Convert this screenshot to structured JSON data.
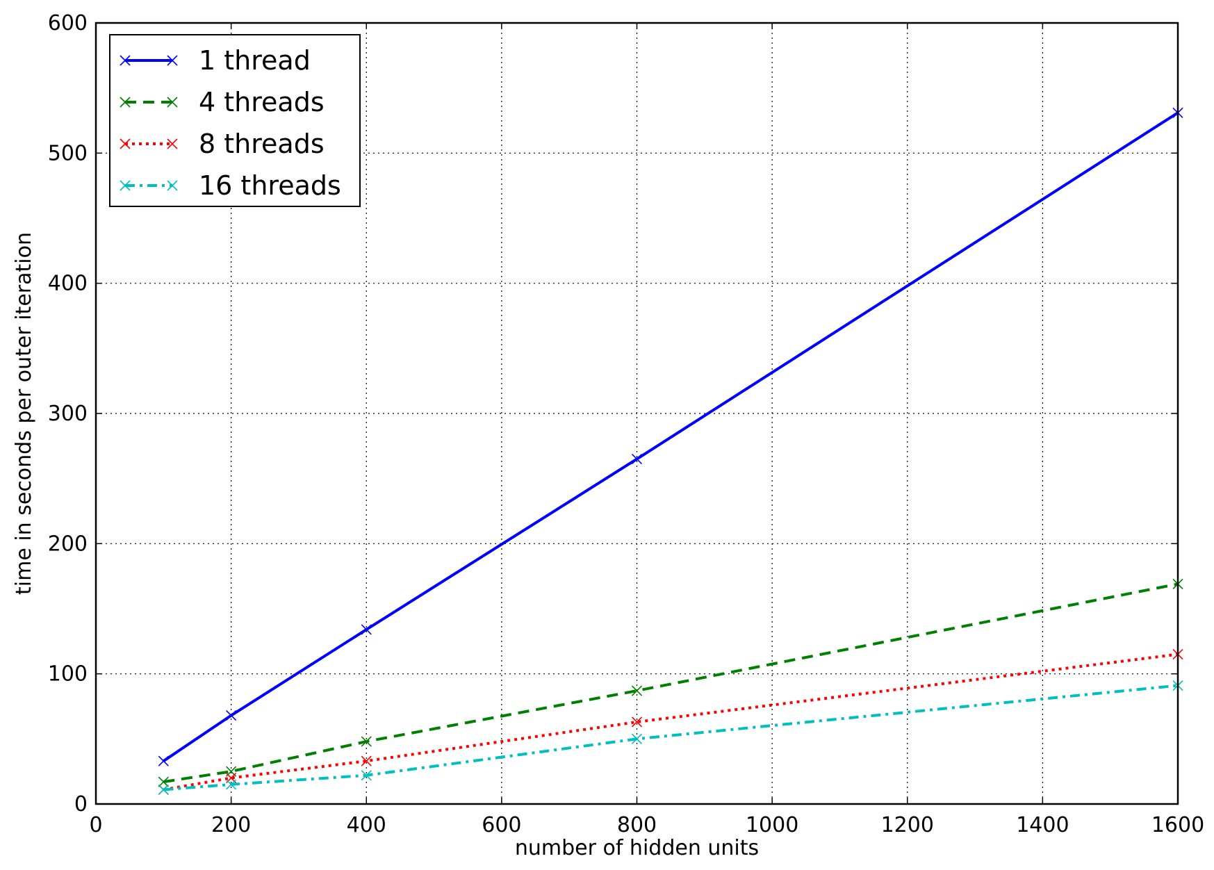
{
  "chart_data": {
    "type": "line",
    "title": "",
    "xlabel": "number of hidden units",
    "ylabel": "time in seconds per outer iteration",
    "xlim": [
      0,
      1600
    ],
    "ylim": [
      0,
      600
    ],
    "xticks": [
      0,
      200,
      400,
      600,
      800,
      1000,
      1200,
      1400,
      1600
    ],
    "yticks": [
      0,
      100,
      200,
      300,
      400,
      500,
      600
    ],
    "grid": true,
    "legend_position": "top-left",
    "x": [
      100,
      200,
      400,
      800,
      1600
    ],
    "series": [
      {
        "name": "1 thread",
        "values": [
          33,
          68,
          134,
          265,
          531
        ],
        "color": "#0000ff",
        "dash": "solid",
        "width": 4
      },
      {
        "name": "4 threads",
        "values": [
          17,
          25,
          48,
          87,
          169
        ],
        "color": "#008000",
        "dash": "dashed",
        "width": 4
      },
      {
        "name": "8 threads",
        "values": [
          11,
          20,
          33,
          63,
          115
        ],
        "color": "#ff0000",
        "dash": "dotted",
        "width": 4
      },
      {
        "name": "16 threads",
        "values": [
          11,
          15,
          22,
          50,
          91
        ],
        "color": "#00bfbf",
        "dash": "dashdot",
        "width": 4
      }
    ]
  }
}
